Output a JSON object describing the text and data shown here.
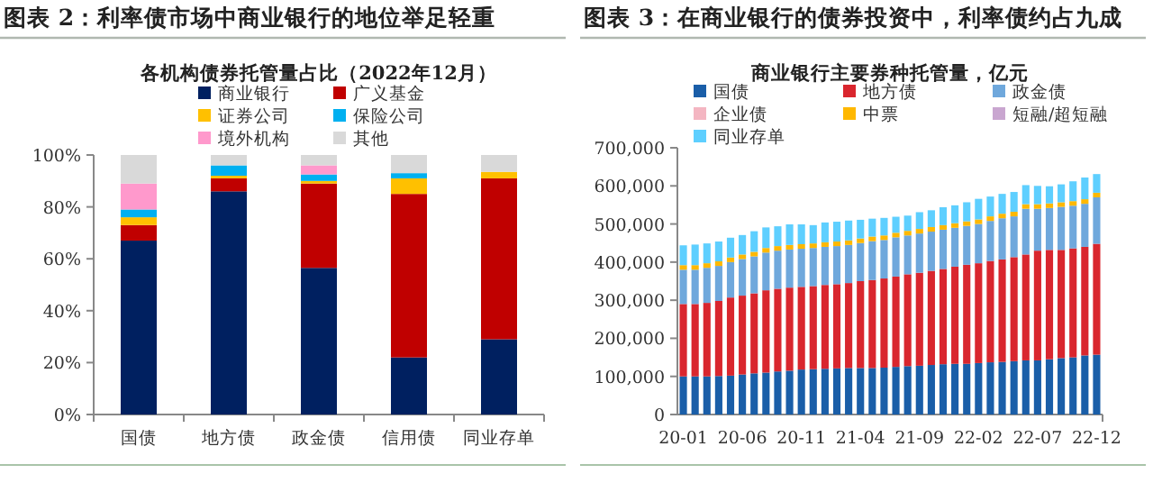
{
  "chart_data": [
    {
      "type": "bar",
      "stacked": true,
      "title": "图表 2：利率债市场中商业银行的地位举足轻重",
      "subtitle": "各机构债券托管量占比（2022年12月）",
      "legend": "top",
      "categories": [
        "国债",
        "地方债",
        "政金债",
        "信用债",
        "同业存单"
      ],
      "ylim": [
        0,
        100
      ],
      "yticks": [
        {
          "value": 0,
          "label": "0%"
        },
        {
          "value": 20,
          "label": "20%"
        },
        {
          "value": 40,
          "label": "40%"
        },
        {
          "value": 60,
          "label": "60%"
        },
        {
          "value": 80,
          "label": "80%"
        },
        {
          "value": 100,
          "label": "100%"
        }
      ],
      "series": [
        {
          "name": "商业银行",
          "color": "#002060",
          "values": [
            67,
            86,
            56.5,
            22,
            29
          ]
        },
        {
          "name": "广义基金",
          "color": "#c00000",
          "values": [
            6,
            5,
            32.5,
            63,
            62
          ]
        },
        {
          "name": "证券公司",
          "color": "#ffc000",
          "values": [
            3,
            1,
            1,
            6,
            2.5
          ]
        },
        {
          "name": "保险公司",
          "color": "#00b0f0",
          "values": [
            3,
            4,
            2.5,
            2,
            0
          ]
        },
        {
          "name": "境外机构",
          "color": "#ff99cc",
          "values": [
            10,
            0,
            3.5,
            0,
            0
          ]
        },
        {
          "name": "其他",
          "color": "#d9d9d9",
          "values": [
            11,
            4,
            4,
            7,
            6.5
          ]
        }
      ]
    },
    {
      "type": "bar",
      "stacked": true,
      "title": "图表 3：在商业银行的债券投资中，利率债约占九成",
      "subtitle": "商业银行主要券种托管量，亿元",
      "legend": "top",
      "categories": [
        "20-01",
        null,
        null,
        null,
        null,
        "20-06",
        null,
        null,
        null,
        null,
        "20-11",
        null,
        null,
        null,
        null,
        "21-04",
        null,
        null,
        null,
        null,
        "21-09",
        null,
        null,
        null,
        null,
        "22-02",
        null,
        null,
        null,
        null,
        "22-07",
        null,
        null,
        null,
        null,
        "22-12"
      ],
      "ylim": [
        0,
        700000
      ],
      "yticks": [
        0,
        {
          "value": 100000,
          "label": "100,000"
        },
        {
          "value": 200000,
          "label": "200,000"
        },
        {
          "value": 300000,
          "label": "300,000"
        },
        {
          "value": 400000,
          "label": "400,000"
        },
        {
          "value": 500000,
          "label": "500,000"
        },
        {
          "value": 600000,
          "label": "600,000"
        },
        {
          "value": 700000,
          "label": "700,000"
        }
      ],
      "series": [
        {
          "name": "国债",
          "color": "#1a5ea8",
          "values": [
            100000,
            100000,
            100000,
            101000,
            102000,
            105000,
            108000,
            110000,
            113000,
            115000,
            118000,
            119000,
            120000,
            121000,
            122000,
            122000,
            122000,
            123000,
            125000,
            127000,
            128000,
            130000,
            132000,
            133000,
            133000,
            135000,
            137000,
            138000,
            140000,
            142000,
            142000,
            145000,
            148000,
            150000,
            155000,
            157000
          ]
        },
        {
          "name": "地方债",
          "color": "#d9262e",
          "values": [
            190000,
            190000,
            193000,
            197000,
            205000,
            207000,
            210000,
            216000,
            217000,
            218000,
            217000,
            218000,
            220000,
            221000,
            223000,
            228000,
            231000,
            234000,
            237000,
            241000,
            244000,
            247000,
            250000,
            255000,
            260000,
            262000,
            266000,
            269000,
            273000,
            278000,
            288000,
            287000,
            284000,
            286000,
            285000,
            291000
          ]
        },
        {
          "name": "政金债",
          "color": "#6fa8dc",
          "values": [
            90000,
            90000,
            92000,
            92000,
            93000,
            96000,
            97000,
            99000,
            100000,
            100000,
            100000,
            100000,
            100000,
            100000,
            100000,
            100000,
            102000,
            101000,
            103000,
            102000,
            103000,
            103000,
            103000,
            102000,
            102000,
            103000,
            105000,
            108000,
            107000,
            120000,
            110000,
            110000,
            113000,
            112000,
            113000,
            122000
          ]
        },
        {
          "name": "企业债",
          "color": "#f4b6c2",
          "values": [
            null,
            null,
            null,
            null,
            null,
            null,
            null,
            null,
            null,
            null,
            null,
            null,
            null,
            null,
            null,
            null,
            null,
            null,
            null,
            null,
            null,
            null,
            null,
            null,
            null,
            null,
            null,
            null,
            null,
            null,
            null,
            null,
            null,
            null,
            null,
            null
          ]
        },
        {
          "name": "中票",
          "color": "#ffb800",
          "values": [
            12000,
            12000,
            12000,
            12000,
            12000,
            12000,
            12000,
            12000,
            12000,
            12000,
            12000,
            12000,
            12000,
            12000,
            12000,
            12000,
            12000,
            12000,
            12000,
            12000,
            12000,
            12000,
            12000,
            12000,
            12000,
            12000,
            12000,
            12000,
            12000,
            12000,
            12000,
            12000,
            12000,
            12000,
            12000,
            12000
          ]
        },
        {
          "name": "短融/超短融",
          "color": "#c9a6d0",
          "values": [
            null,
            null,
            null,
            null,
            null,
            null,
            null,
            null,
            null,
            null,
            null,
            null,
            null,
            null,
            null,
            null,
            null,
            null,
            null,
            null,
            null,
            null,
            null,
            null,
            null,
            null,
            null,
            null,
            null,
            null,
            null,
            null,
            null,
            null,
            null,
            null
          ]
        },
        {
          "name": "同业存单",
          "color": "#5ecfff",
          "values": [
            52000,
            54000,
            52000,
            52000,
            52000,
            51000,
            54000,
            54000,
            52000,
            54000,
            52000,
            48000,
            52000,
            52000,
            52000,
            49000,
            47000,
            46000,
            42000,
            40000,
            44000,
            44000,
            47000,
            47000,
            50000,
            54000,
            52000,
            52000,
            52000,
            50000,
            48000,
            45000,
            47000,
            52000,
            57000,
            49000
          ]
        }
      ]
    }
  ]
}
